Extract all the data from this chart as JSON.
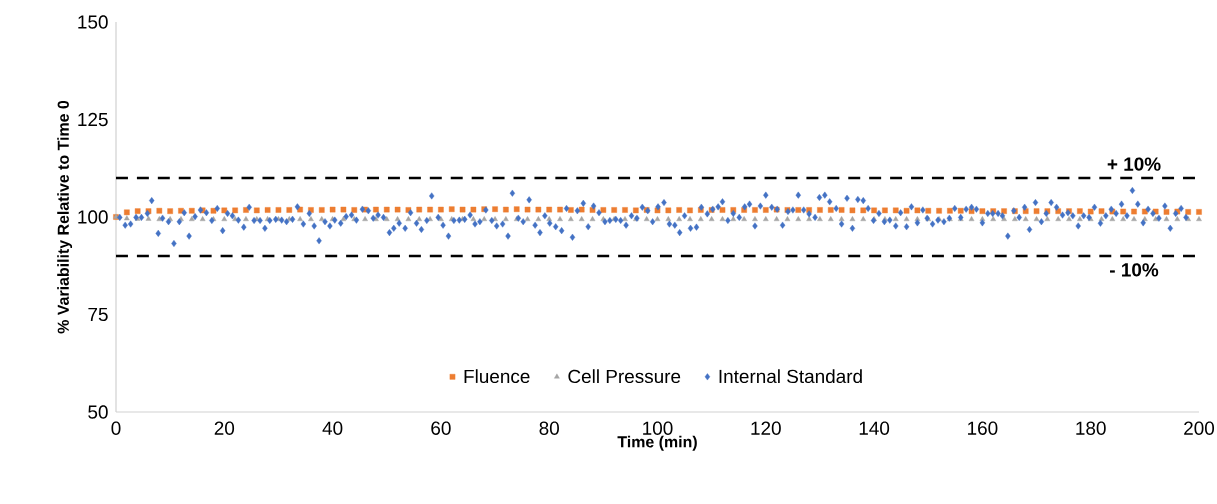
{
  "chart_data": {
    "type": "scatter",
    "xlabel": "Time (min)",
    "ylabel": "% Variability Relative to Time 0",
    "xlim": [
      0,
      200
    ],
    "xticks": [
      0,
      20,
      40,
      60,
      80,
      100,
      120,
      140,
      160,
      180,
      200
    ],
    "ylim": [
      50,
      150
    ],
    "yticks": [
      50,
      75,
      100,
      125,
      150
    ],
    "legend": "bottom",
    "grid": false,
    "ref_lines": [
      {
        "axis": "y",
        "value": 110,
        "color": "#000000",
        "line_style": "dashed"
      },
      {
        "axis": "y",
        "value": 90,
        "color": "#000000",
        "line_style": "dashed"
      }
    ],
    "annotations": [
      {
        "text": "+ 10%",
        "x": 188,
        "y": 110
      },
      {
        "text": "- 10%",
        "x": 188,
        "y": 90
      }
    ],
    "series": [
      {
        "name": "Fluence",
        "color": "#ed7d31",
        "marker": "square",
        "x": [
          0,
          2,
          4,
          6,
          8,
          10,
          12,
          14,
          16,
          18,
          20,
          22,
          24,
          26,
          28,
          30,
          32,
          34,
          36,
          38,
          40,
          42,
          44,
          46,
          48,
          50,
          52,
          54,
          56,
          58,
          60,
          62,
          64,
          66,
          68,
          70,
          72,
          74,
          76,
          78,
          80,
          82,
          84,
          86,
          88,
          90,
          92,
          94,
          96,
          98,
          100,
          102,
          104,
          106,
          108,
          110,
          112,
          114,
          116,
          118,
          120,
          122,
          124,
          126,
          128,
          130,
          132,
          134,
          136,
          138,
          140,
          142,
          144,
          146,
          148,
          150,
          152,
          154,
          156,
          158,
          160,
          162,
          164,
          166,
          168,
          170,
          172,
          174,
          176,
          178,
          180,
          182,
          184,
          186,
          188,
          190,
          192,
          194,
          196,
          198,
          200
        ],
        "values": [
          100,
          101.2,
          101.5,
          101.5,
          101.6,
          101.5,
          101.6,
          101.6,
          101.7,
          101.6,
          101.7,
          101.7,
          101.8,
          101.7,
          101.8,
          101.8,
          101.8,
          101.9,
          101.8,
          101.8,
          101.9,
          101.9,
          101.8,
          101.9,
          101.9,
          101.9,
          101.9,
          101.8,
          101.9,
          101.9,
          101.9,
          102,
          101.9,
          101.9,
          102,
          102,
          101.9,
          102,
          101.9,
          101.9,
          101.9,
          101.9,
          101.8,
          101.9,
          101.8,
          101.8,
          101.8,
          101.8,
          101.7,
          101.8,
          101.7,
          101.7,
          101.8,
          101.7,
          101.8,
          101.8,
          101.8,
          101.8,
          101.8,
          101.8,
          101.8,
          101.9,
          101.8,
          101.8,
          101.8,
          101.8,
          101.8,
          101.8,
          101.7,
          101.7,
          101.7,
          101.7,
          101.7,
          101.6,
          101.7,
          101.6,
          101.6,
          101.6,
          101.6,
          101.5,
          101.5,
          101.5,
          101.5,
          101.5,
          101.5,
          101.5,
          101.5,
          101.5,
          101.5,
          101.5,
          101.4,
          101.5,
          101.4,
          101.4,
          101.4,
          101.4,
          101.4,
          101.3,
          101.4,
          101.3,
          101.3
        ]
      },
      {
        "name": "Cell Pressure",
        "color": "#a5a5a5",
        "marker": "triangle",
        "x": [
          0,
          2,
          4,
          6,
          8,
          10,
          12,
          14,
          16,
          18,
          20,
          22,
          24,
          26,
          28,
          30,
          32,
          34,
          36,
          38,
          40,
          42,
          44,
          46,
          48,
          50,
          52,
          54,
          56,
          58,
          60,
          62,
          64,
          66,
          68,
          70,
          72,
          74,
          76,
          78,
          80,
          82,
          84,
          86,
          88,
          90,
          92,
          94,
          96,
          98,
          100,
          102,
          104,
          106,
          108,
          110,
          112,
          114,
          116,
          118,
          120,
          122,
          124,
          126,
          128,
          130,
          132,
          134,
          136,
          138,
          140,
          142,
          144,
          146,
          148,
          150,
          152,
          154,
          156,
          158,
          160,
          162,
          164,
          166,
          168,
          170,
          172,
          174,
          176,
          178,
          180,
          182,
          184,
          186,
          188,
          190,
          192,
          194,
          196,
          198,
          200
        ],
        "values": [
          100,
          99.6,
          99.5,
          99.5,
          99.4,
          99.4,
          99.4,
          99.4,
          99.4,
          99.4,
          99.4,
          99.4,
          99.4,
          99.4,
          99.4,
          99.4,
          99.4,
          99.4,
          99.4,
          99.4,
          99.4,
          99.4,
          99.4,
          99.4,
          99.4,
          99.4,
          99.4,
          99.4,
          99.4,
          99.4,
          99.4,
          99.4,
          99.4,
          99.4,
          99.4,
          99.4,
          99.4,
          99.4,
          99.4,
          99.4,
          99.4,
          99.4,
          99.4,
          99.4,
          99.4,
          99.4,
          99.4,
          99.4,
          99.4,
          99.4,
          99.4,
          99.4,
          99.4,
          99.4,
          99.4,
          99.4,
          99.4,
          99.4,
          99.4,
          99.4,
          99.4,
          99.4,
          99.4,
          99.4,
          99.4,
          99.4,
          99.4,
          99.4,
          99.4,
          99.4,
          99.4,
          99.4,
          99.4,
          99.4,
          99.4,
          99.4,
          99.4,
          99.4,
          99.4,
          99.4,
          99.4,
          99.4,
          99.4,
          99.4,
          99.4,
          99.4,
          99.4,
          99.4,
          99.4,
          99.4,
          99.4,
          99.4,
          99.4,
          99.4,
          99.4,
          99.4,
          99.4,
          99.4,
          99.4,
          99.4,
          99.4
        ]
      },
      {
        "name": "Internal Standard",
        "color": "#4472c4",
        "marker": "diamond",
        "x": [
          0.7,
          1.7,
          2.7,
          3.7,
          4.7,
          5.8,
          6.6,
          7.8,
          8.6,
          9.7,
          10.7,
          11.7,
          12.6,
          13.5,
          14.6,
          15.6,
          16.7,
          17.7,
          18.7,
          19.7,
          20.6,
          21.5,
          22.6,
          23.6,
          24.6,
          25.5,
          26.6,
          27.5,
          28.4,
          29.5,
          30.6,
          31.5,
          32.6,
          33.5,
          34.6,
          35.7,
          36.6,
          37.5,
          38.6,
          39.5,
          40.4,
          41.5,
          42.5,
          43.5,
          44.4,
          45.5,
          46.6,
          47.5,
          48.4,
          49.4,
          50.5,
          51.3,
          52.3,
          53.4,
          54.4,
          55.5,
          56.4,
          57.4,
          58.3,
          59.5,
          60.4,
          61.4,
          62.4,
          63.4,
          64.4,
          65.4,
          66.3,
          67.2,
          68.3,
          69.4,
          70.3,
          71.4,
          72.4,
          73.2,
          74.3,
          75.2,
          76.3,
          77.4,
          78.3,
          79.2,
          80.1,
          81.2,
          82.3,
          83.2,
          84.3,
          85.2,
          86.3,
          87.2,
          88.2,
          89.2,
          90.3,
          91.2,
          92.3,
          93.2,
          94.2,
          95.2,
          96.2,
          97.2,
          98.2,
          99.1,
          100.1,
          101.2,
          102.2,
          103.2,
          104.1,
          105,
          106.1,
          107.2,
          108.1,
          109.2,
          110.2,
          111.2,
          112,
          113,
          114,
          115.1,
          116.1,
          117,
          118,
          119,
          120,
          121.1,
          122.1,
          123.1,
          124.1,
          125,
          126,
          127,
          128,
          129.1,
          129.9,
          130.9,
          131.8,
          133,
          134,
          135,
          136,
          137,
          138,
          138.9,
          139.9,
          140.9,
          141.9,
          142.9,
          144,
          144.9,
          146,
          146.9,
          148,
          149,
          149.8,
          150.8,
          151.8,
          152.9,
          153.9,
          154.9,
          156,
          157,
          158,
          158.9,
          160,
          161,
          161.9,
          162.9,
          163.7,
          164.7,
          165.8,
          166.8,
          167.8,
          168.7,
          169.8,
          170.9,
          171.8,
          172.7,
          173.7,
          174.8,
          175.8,
          176.7,
          177.7,
          178.7,
          179.7,
          180.7,
          181.8,
          182.8,
          183.8,
          184.7,
          185.7,
          186.7,
          187.7,
          188.7,
          189.7,
          190.6,
          191.5,
          192.6,
          193.7,
          194.7,
          195.7,
          196.7,
          197.6
        ],
        "values": [
          99.9,
          97.9,
          98.2,
          99.9,
          99.9,
          100.9,
          104.2,
          95.8,
          99.7,
          98.8,
          93.2,
          98.8,
          101.1,
          95.1,
          100.1,
          101.8,
          101.1,
          99.1,
          102.2,
          96.5,
          100.9,
          100.3,
          99.2,
          97.4,
          102.5,
          99.1,
          99.1,
          97.1,
          99.1,
          99.4,
          99.2,
          98.8,
          99.4,
          102.6,
          98.2,
          100.9,
          97.7,
          93.9,
          98.8,
          97.7,
          99.2,
          98.4,
          100.1,
          100.5,
          99.2,
          102,
          101.6,
          99.7,
          100.5,
          99.9,
          96,
          97.1,
          98.4,
          97.1,
          101.1,
          98.4,
          96.8,
          99.1,
          105.4,
          99.9,
          97.9,
          95.1,
          99.1,
          99.2,
          99.4,
          100.5,
          98.2,
          98.8,
          101.8,
          99.1,
          97.7,
          98.2,
          95.1,
          106.1,
          99.7,
          98.8,
          104.4,
          97.9,
          96,
          100.3,
          98.4,
          97.5,
          96.5,
          102.2,
          94.8,
          101.6,
          103.5,
          97.5,
          102.8,
          101.1,
          98.8,
          99.1,
          99.4,
          99.1,
          97.9,
          100.3,
          99.7,
          102.5,
          101.6,
          98.8,
          102.6,
          103.7,
          98.2,
          97.9,
          96,
          100.3,
          97.1,
          97.4,
          102.5,
          100.8,
          102,
          102.6,
          103.9,
          99.1,
          100.9,
          99.9,
          102.6,
          103.3,
          97.7,
          102.8,
          105.6,
          102.5,
          102,
          97.9,
          101.4,
          101.8,
          105.6,
          101.8,
          100.8,
          99.9,
          105,
          105.6,
          103.9,
          102.2,
          98.2,
          104.8,
          97.1,
          104.5,
          104.2,
          102.2,
          99.1,
          100.9,
          98.8,
          99.2,
          97.7,
          101.1,
          97.5,
          102.6,
          98.5,
          101.8,
          99.7,
          98.2,
          99.2,
          98.8,
          99.7,
          102.2,
          99.9,
          102,
          102.5,
          102,
          98.5,
          100.9,
          100.9,
          100.9,
          100.3,
          95.1,
          101.6,
          99.9,
          102.5,
          96.8,
          103.7,
          98.8,
          100.9,
          103.7,
          102.5,
          100.5,
          101.1,
          100.3,
          97.7,
          100.3,
          99.9,
          102.5,
          98.4,
          100.3,
          102,
          100.9,
          103.3,
          100.3,
          106.8,
          103.3,
          98.5,
          102,
          100.9,
          99.7,
          102.8,
          97.1,
          100.9,
          102.2,
          99.9
        ]
      }
    ]
  }
}
